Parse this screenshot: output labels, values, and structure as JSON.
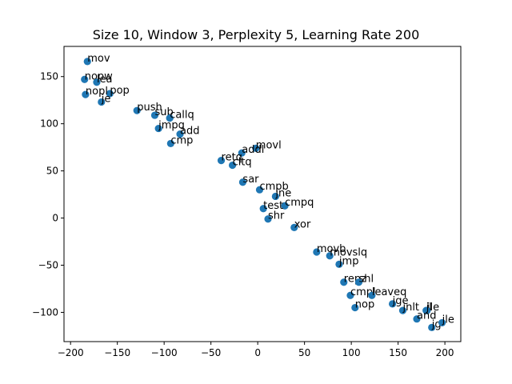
{
  "chart_data": {
    "type": "scatter",
    "title": "Size 10, Window 3, Perplexity 5, Learning Rate 200",
    "xlabel": "",
    "ylabel": "",
    "xlim": [
      -207,
      217
    ],
    "ylim": [
      -131,
      182
    ],
    "xticks": [
      -200,
      -150,
      -100,
      -50,
      0,
      50,
      100,
      150,
      200
    ],
    "yticks": [
      -100,
      -50,
      0,
      50,
      100,
      150
    ],
    "xtick_labels": [
      "−200",
      "−150",
      "−100",
      "−50",
      "0",
      "50",
      "100",
      "150",
      "200"
    ],
    "ytick_labels": [
      "−100",
      "−50",
      "0",
      "50",
      "100",
      "150"
    ],
    "grid": false,
    "marker_color": "#1f77b4",
    "points": [
      {
        "label": "mov",
        "x": -182,
        "y": 166
      },
      {
        "label": "nopw",
        "x": -185,
        "y": 147
      },
      {
        "label": "lea",
        "x": -172,
        "y": 144
      },
      {
        "label": "pop",
        "x": -158,
        "y": 132
      },
      {
        "label": "nopl",
        "x": -184,
        "y": 131
      },
      {
        "label": "je",
        "x": -167,
        "y": 123
      },
      {
        "label": "push",
        "x": -129,
        "y": 114
      },
      {
        "label": "sub",
        "x": -110,
        "y": 109
      },
      {
        "label": "callq",
        "x": -94,
        "y": 106
      },
      {
        "label": "jmpq",
        "x": -106,
        "y": 95
      },
      {
        "label": "add",
        "x": -83,
        "y": 89
      },
      {
        "label": "cmp",
        "x": -93,
        "y": 79
      },
      {
        "label": "movl",
        "x": -2,
        "y": 74
      },
      {
        "label": "addl",
        "x": -17,
        "y": 69
      },
      {
        "label": "retq",
        "x": -39,
        "y": 61
      },
      {
        "label": "cltq",
        "x": -27,
        "y": 56
      },
      {
        "label": "sar",
        "x": -16,
        "y": 38
      },
      {
        "label": "cmpb",
        "x": 2,
        "y": 30
      },
      {
        "label": "jne",
        "x": 19,
        "y": 23
      },
      {
        "label": "cmpq",
        "x": 29,
        "y": 13
      },
      {
        "label": "test",
        "x": 6,
        "y": 10
      },
      {
        "label": "shr",
        "x": 11,
        "y": -1
      },
      {
        "label": "xor",
        "x": 39,
        "y": -10
      },
      {
        "label": "movb",
        "x": 63,
        "y": -36
      },
      {
        "label": "movslq",
        "x": 77,
        "y": -40
      },
      {
        "label": "jmp",
        "x": 87,
        "y": -49
      },
      {
        "label": "repz",
        "x": 92,
        "y": -68
      },
      {
        "label": "shl",
        "x": 108,
        "y": -68
      },
      {
        "label": "cmpl",
        "x": 99,
        "y": -82
      },
      {
        "label": "leaveq",
        "x": 122,
        "y": -82
      },
      {
        "label": "nop",
        "x": 104,
        "y": -95
      },
      {
        "label": "jge",
        "x": 144,
        "y": -91
      },
      {
        "label": "jle",
        "x": 181,
        "y": -98
      },
      {
        "label": "jl",
        "x": 180,
        "y": -98
      },
      {
        "label": "jg",
        "x": 186,
        "y": -116
      },
      {
        "label": "jnlt",
        "x": 155,
        "y": -98
      },
      {
        "label": "and",
        "x": 170,
        "y": -107
      },
      {
        "label": "jle",
        "x": 197,
        "y": -111
      }
    ]
  }
}
